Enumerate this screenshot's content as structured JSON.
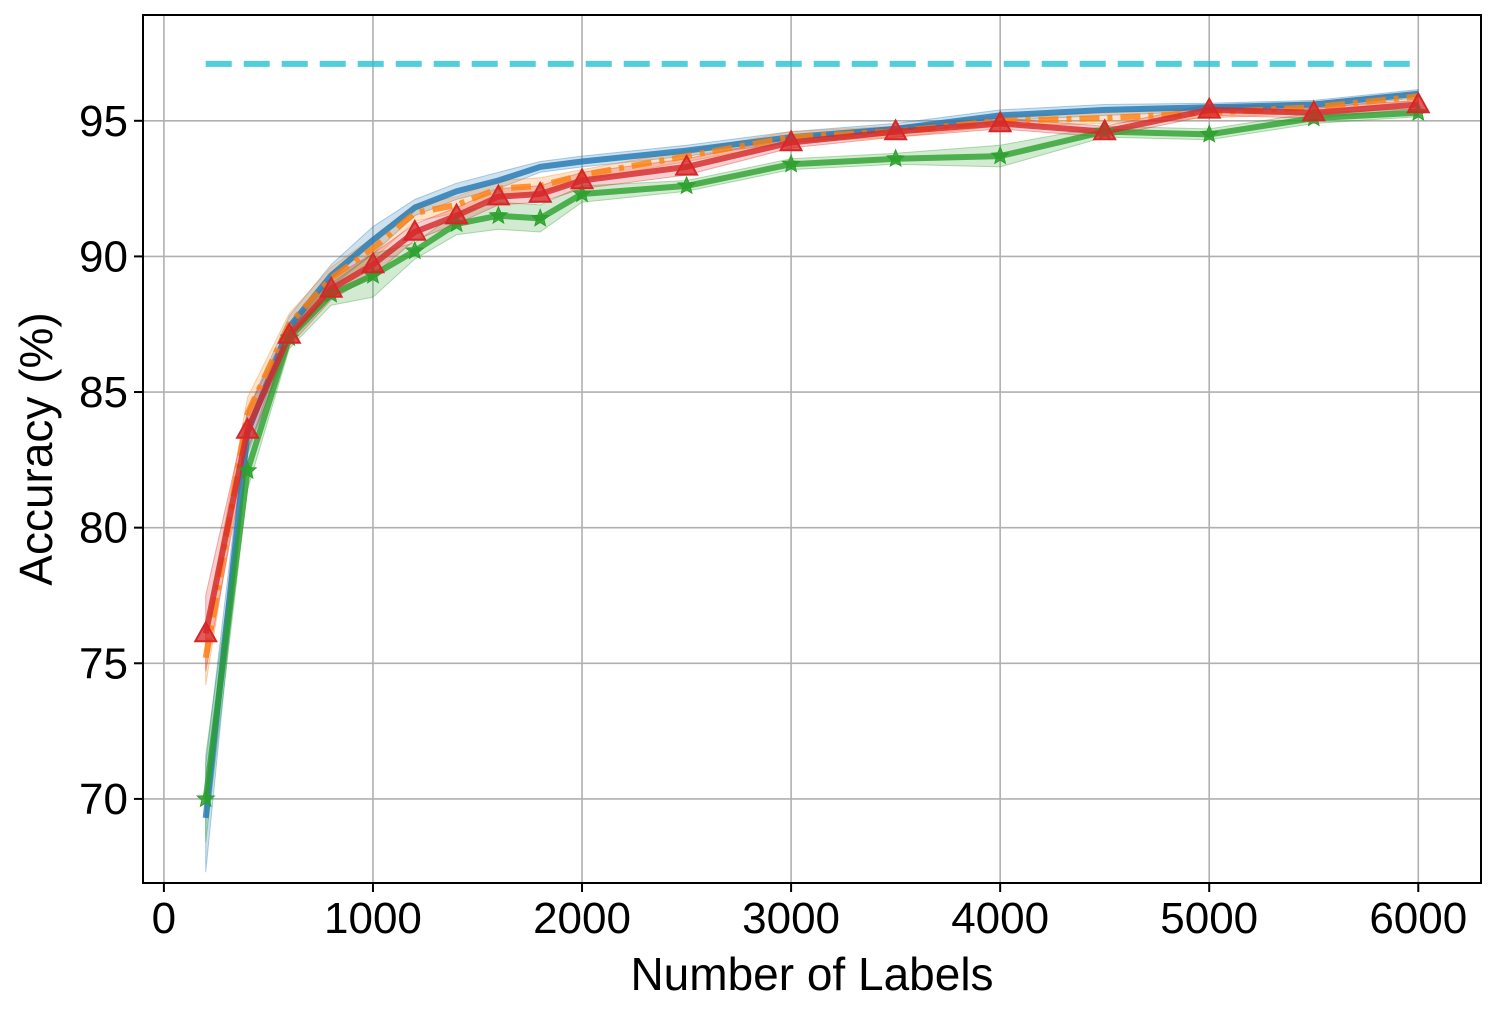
{
  "chart_data": {
    "type": "line",
    "title": "",
    "xlabel": "Number of Labels",
    "ylabel": "Accuracy (%)",
    "xlim": [
      -100,
      6300
    ],
    "ylim": [
      66.9,
      98.9
    ],
    "xticks": [
      0,
      1000,
      2000,
      3000,
      4000,
      5000,
      6000
    ],
    "yticks": [
      70,
      75,
      80,
      85,
      90,
      95
    ],
    "grid": true,
    "legend": "none",
    "reference_line": {
      "y": 97.1,
      "x_range": [
        200,
        6000
      ],
      "color": "#17becf",
      "style": "dashed"
    },
    "series": [
      {
        "color": "#1f77b4",
        "style": "solid",
        "marker": "none",
        "x": [
          200,
          400,
          600,
          800,
          1000,
          1200,
          1400,
          1600,
          1800,
          2000,
          2500,
          3000,
          3500,
          4000,
          4500,
          5000,
          5500,
          6000
        ],
        "y": [
          69.3,
          83.5,
          87.4,
          89.3,
          90.6,
          91.8,
          92.4,
          92.8,
          93.3,
          93.5,
          93.9,
          94.4,
          94.7,
          95.2,
          95.4,
          95.5,
          95.6,
          96.0
        ],
        "band": [
          2.0,
          0.8,
          0.4,
          0.4,
          0.5,
          0.3,
          0.3,
          0.3,
          0.2,
          0.2,
          0.2,
          0.2,
          0.2,
          0.2,
          0.2,
          0.15,
          0.15,
          0.15
        ]
      },
      {
        "color": "#ff7f0e",
        "style": "dashdot",
        "marker": "none",
        "x": [
          200,
          400,
          600,
          800,
          1000,
          1200,
          1400,
          1600,
          1800,
          2000,
          2500,
          3000,
          3500,
          4000,
          4500,
          5000,
          5500,
          6000
        ],
        "y": [
          75.2,
          84.2,
          87.5,
          89.2,
          90.3,
          91.6,
          91.9,
          92.5,
          92.6,
          93.0,
          93.7,
          94.4,
          94.6,
          95.0,
          95.1,
          95.3,
          95.5,
          95.9
        ],
        "band": [
          1.0,
          0.6,
          0.4,
          0.4,
          0.4,
          0.3,
          0.3,
          0.3,
          0.3,
          0.2,
          0.2,
          0.2,
          0.2,
          0.2,
          0.2,
          0.2,
          0.2,
          0.15
        ]
      },
      {
        "color": "#2ca02c",
        "style": "solid",
        "marker": "star",
        "x": [
          200,
          400,
          600,
          800,
          1000,
          1200,
          1400,
          1600,
          1800,
          2000,
          2500,
          3000,
          3500,
          4000,
          4500,
          5000,
          5500,
          6000
        ],
        "y": [
          70.0,
          82.1,
          87.0,
          88.6,
          89.3,
          90.2,
          91.2,
          91.5,
          91.4,
          92.3,
          92.6,
          93.4,
          93.6,
          93.7,
          94.6,
          94.5,
          95.1,
          95.3
        ],
        "band": [
          1.6,
          0.7,
          0.4,
          0.4,
          0.8,
          0.3,
          0.4,
          0.5,
          0.5,
          0.3,
          0.2,
          0.2,
          0.2,
          0.4,
          0.2,
          0.2,
          0.2,
          0.15
        ]
      },
      {
        "color": "#d62728",
        "style": "solid",
        "marker": "triangle",
        "x": [
          200,
          400,
          600,
          800,
          1000,
          1200,
          1400,
          1600,
          1800,
          2000,
          2500,
          3000,
          3500,
          4000,
          4500,
          5000,
          5500,
          6000
        ],
        "y": [
          76.1,
          83.6,
          87.1,
          88.8,
          89.7,
          90.9,
          91.5,
          92.2,
          92.3,
          92.8,
          93.3,
          94.2,
          94.6,
          94.9,
          94.6,
          95.4,
          95.3,
          95.6
        ],
        "band": [
          1.4,
          0.7,
          0.4,
          0.4,
          0.4,
          0.3,
          0.3,
          0.3,
          0.3,
          0.3,
          0.3,
          0.2,
          0.2,
          0.2,
          0.2,
          0.2,
          0.2,
          0.15
        ]
      }
    ]
  }
}
